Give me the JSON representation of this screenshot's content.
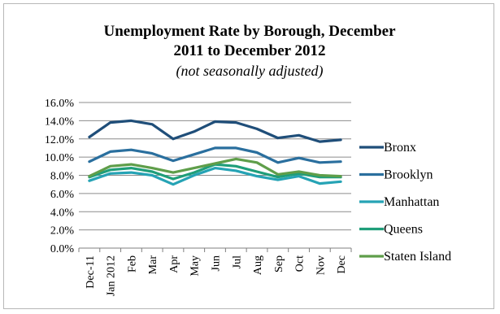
{
  "chart_data": {
    "type": "line",
    "title_line1": "Unemployment Rate by Borough, December",
    "title_line2": "2011 to December 2012",
    "subtitle": "(not seasonally adjusted)",
    "categories": [
      "Dec-11",
      "Jan 2012",
      "Feb",
      "Mar",
      "Apr",
      "May",
      "Jun",
      "Jul",
      "Aug",
      "Sep",
      "Oct",
      "Nov",
      "Dec"
    ],
    "yticks": [
      "0.0%",
      "2.0%",
      "4.0%",
      "6.0%",
      "8.0%",
      "10.0%",
      "12.0%",
      "14.0%",
      "16.0%"
    ],
    "ylim": [
      0,
      16
    ],
    "grid": true,
    "legend_position": "right",
    "series": [
      {
        "name": "Bronx",
        "color": "#1f4e79",
        "values": [
          12.2,
          13.8,
          14.0,
          13.6,
          12.0,
          12.8,
          13.9,
          13.8,
          13.1,
          12.1,
          12.4,
          11.7,
          11.9
        ]
      },
      {
        "name": "Brooklyn",
        "color": "#2a6f9e",
        "values": [
          9.5,
          10.6,
          10.8,
          10.4,
          9.6,
          10.3,
          11.0,
          11.0,
          10.5,
          9.4,
          9.9,
          9.4,
          9.5
        ]
      },
      {
        "name": "Manhattan",
        "color": "#26a3b5",
        "values": [
          7.4,
          8.2,
          8.3,
          8.0,
          7.0,
          8.0,
          8.8,
          8.5,
          7.9,
          7.5,
          7.9,
          7.1,
          7.3
        ]
      },
      {
        "name": "Queens",
        "color": "#1f9e7a",
        "values": [
          7.8,
          8.6,
          8.8,
          8.4,
          7.6,
          8.3,
          9.2,
          9.0,
          8.4,
          7.8,
          8.2,
          7.8,
          7.8
        ]
      },
      {
        "name": "Staten Island",
        "color": "#5f9e4a",
        "values": [
          7.9,
          9.0,
          9.2,
          8.8,
          8.3,
          8.8,
          9.3,
          9.8,
          9.4,
          8.1,
          8.4,
          8.0,
          7.9
        ]
      }
    ]
  }
}
